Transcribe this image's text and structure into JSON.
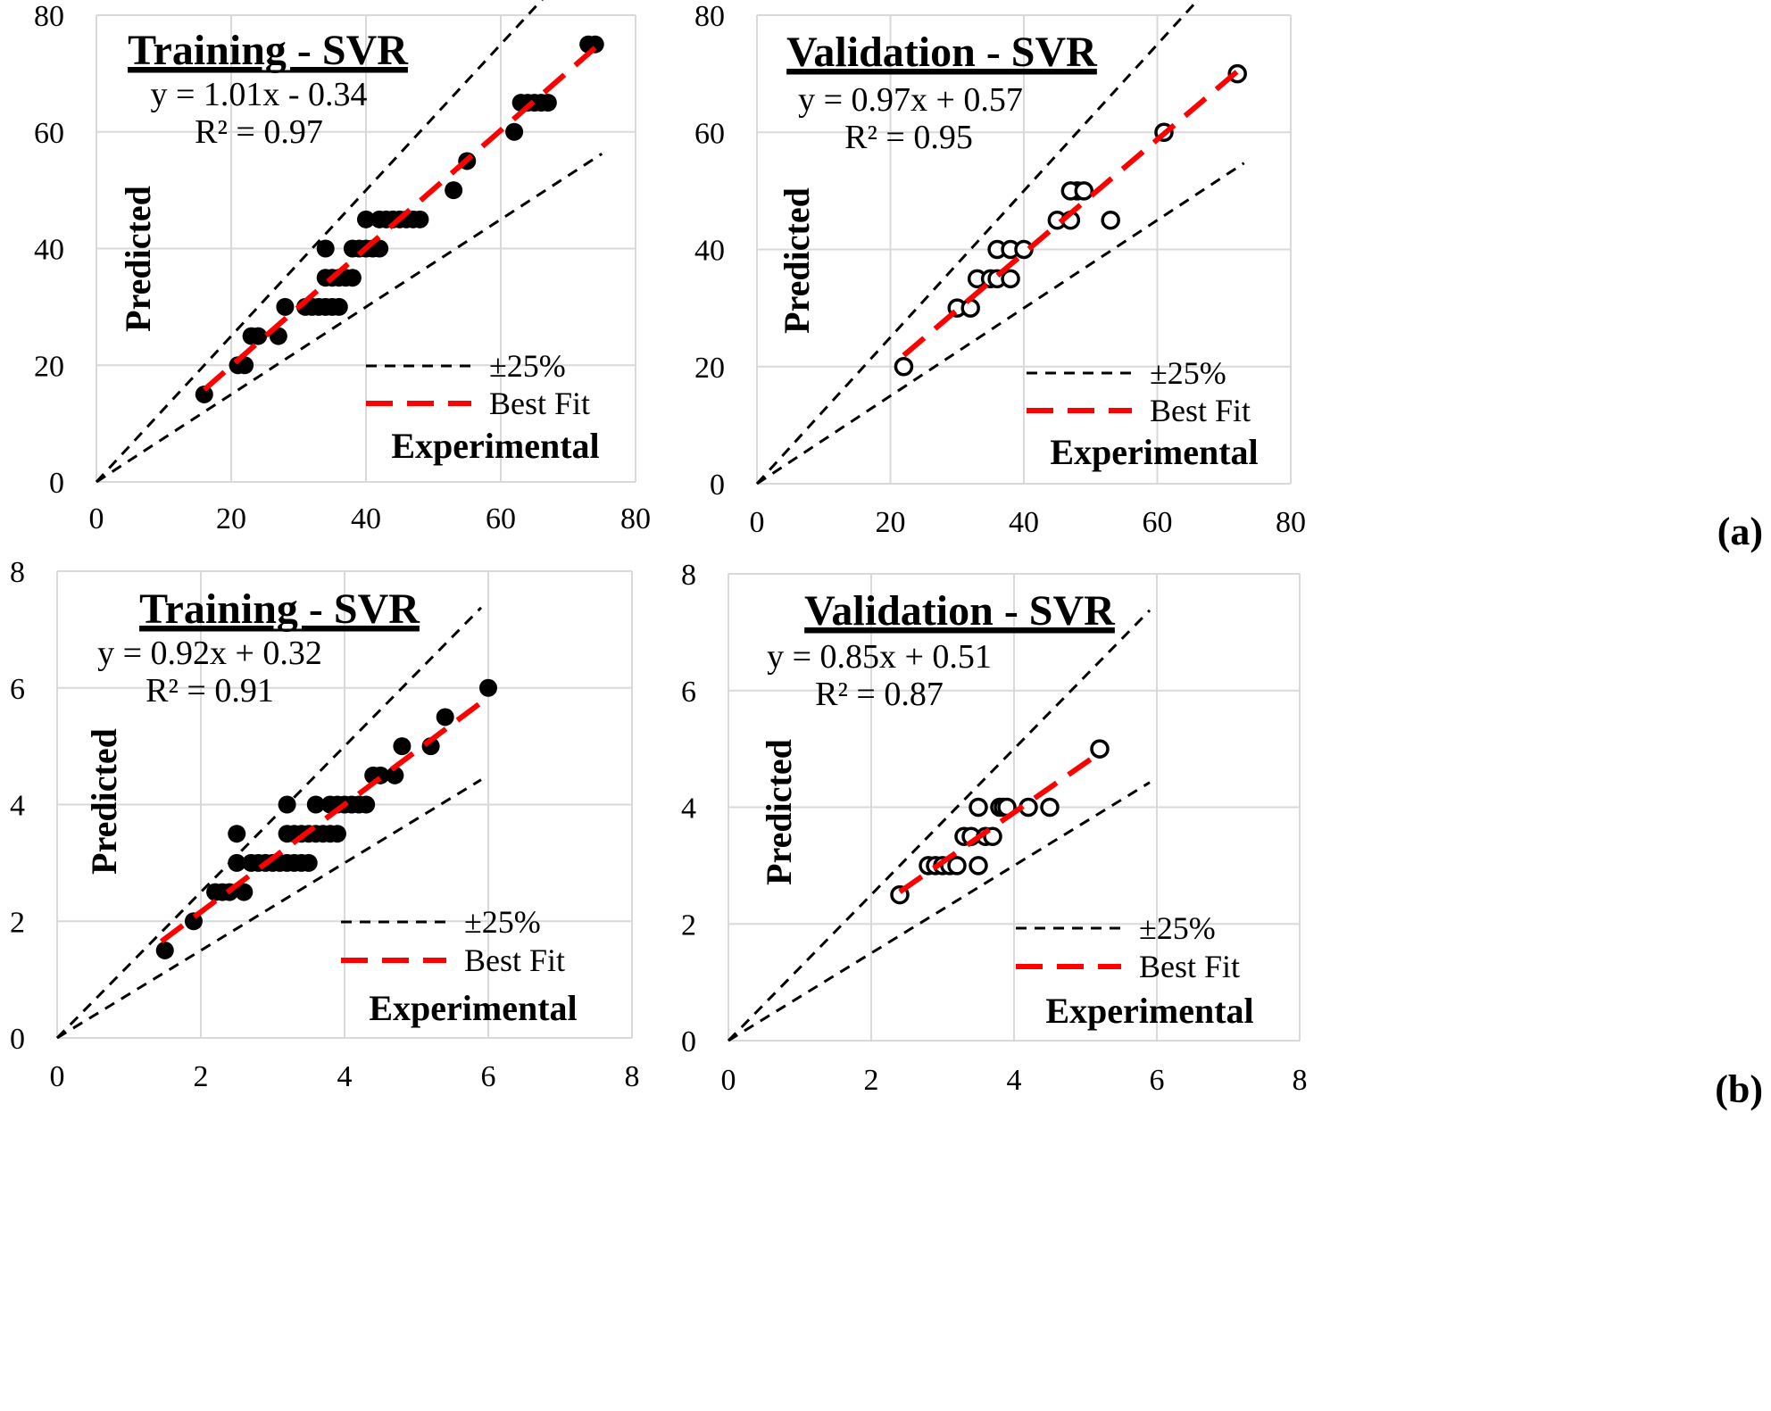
{
  "chart_data": [
    {
      "type": "scatter",
      "panel": "a",
      "title": "Training - SVR",
      "equation": "y = 1.01x - 0.34",
      "r2": "R² = 0.97",
      "xlabel": "Experimental",
      "ylabel": "Predicted",
      "xlim": [
        0,
        80
      ],
      "ylim": [
        0,
        80
      ],
      "xticks": [
        "0",
        "20",
        "40",
        "60",
        "80"
      ],
      "yticks": [
        "0",
        "20",
        "40",
        "60",
        "80"
      ],
      "grid": true,
      "marker": "filled",
      "legend": [
        "±25%",
        "Best Fit"
      ],
      "fit": {
        "slope": 1.01,
        "intercept": -0.34,
        "x_range": [
          16,
          74
        ]
      },
      "bands": {
        "upper": 1.25,
        "lower": 0.75,
        "x_max": 75
      },
      "points": {
        "x": [
          16,
          21,
          22,
          23,
          24,
          27,
          28,
          31,
          32,
          33,
          34,
          35,
          36,
          34,
          35,
          36,
          37,
          38,
          34,
          38,
          39,
          40,
          41,
          42,
          40,
          42,
          43,
          44,
          45,
          46,
          47,
          48,
          53,
          55,
          62,
          63,
          64,
          65,
          66,
          67,
          73,
          74
        ],
        "y": [
          15,
          20,
          20,
          25,
          25,
          25,
          30,
          30,
          30,
          30,
          30,
          30,
          30,
          35,
          35,
          35,
          35,
          35,
          40,
          40,
          40,
          40,
          40,
          40,
          45,
          45,
          45,
          45,
          45,
          45,
          45,
          45,
          50,
          55,
          60,
          65,
          65,
          65,
          65,
          65,
          75,
          75
        ]
      }
    },
    {
      "type": "scatter",
      "panel": "a",
      "title": "Validation - SVR",
      "equation": "y = 0.97x + 0.57",
      "r2": "R² = 0.95",
      "xlabel": "Experimental",
      "ylabel": "Predicted",
      "xlim": [
        0,
        80
      ],
      "ylim": [
        0,
        80
      ],
      "xticks": [
        "0",
        "20",
        "40",
        "60",
        "80"
      ],
      "yticks": [
        "0",
        "20",
        "40",
        "60",
        "80"
      ],
      "grid": true,
      "marker": "open",
      "legend": [
        "±25%",
        "Best Fit"
      ],
      "fit": {
        "slope": 0.97,
        "intercept": 0.57,
        "x_range": [
          22,
          72
        ]
      },
      "bands": {
        "upper": 1.25,
        "lower": 0.75,
        "x_max": 73
      },
      "points": {
        "x": [
          22,
          30,
          32,
          33,
          35,
          36,
          38,
          36,
          38,
          40,
          45,
          47,
          48,
          47,
          49,
          53,
          61,
          72
        ],
        "y": [
          20,
          30,
          30,
          35,
          35,
          35,
          35,
          40,
          40,
          40,
          45,
          45,
          50,
          50,
          50,
          45,
          60,
          70
        ]
      },
      "panel_label": "(a)"
    },
    {
      "type": "scatter",
      "panel": "b",
      "title": "Training - SVR",
      "equation": "y = 0.92x + 0.32",
      "r2": "R² = 0.91",
      "xlabel": "Experimental",
      "ylabel": "Predicted",
      "xlim": [
        0,
        8
      ],
      "ylim": [
        0,
        8
      ],
      "xticks": [
        "0",
        "2",
        "4",
        "6",
        "8"
      ],
      "yticks": [
        "0",
        "2",
        "4",
        "6",
        "8"
      ],
      "grid": true,
      "marker": "filled",
      "legend": [
        "±25%",
        "Best Fit"
      ],
      "fit": {
        "slope": 0.92,
        "intercept": 0.32,
        "x_range": [
          1.45,
          6.0
        ]
      },
      "bands": {
        "upper": 1.25,
        "lower": 0.75,
        "x_max": 5.9
      },
      "points": {
        "x": [
          1.5,
          1.9,
          2.2,
          2.3,
          2.4,
          2.5,
          2.6,
          2.5,
          2.7,
          2.8,
          2.9,
          3.0,
          3.1,
          3.2,
          3.3,
          3.4,
          3.5,
          3.2,
          3.3,
          3.4,
          3.5,
          3.6,
          3.7,
          3.8,
          3.9,
          3.2,
          3.6,
          3.8,
          3.9,
          4.0,
          4.1,
          4.2,
          4.3,
          4.4,
          4.5,
          4.7,
          4.8,
          5.2,
          5.4,
          6.0
        ],
        "y": [
          1.5,
          2.0,
          2.5,
          2.5,
          2.5,
          3.5,
          2.5,
          3.0,
          3.0,
          3.0,
          3.0,
          3.0,
          3.0,
          3.0,
          3.0,
          3.0,
          3.0,
          3.5,
          3.5,
          3.5,
          3.5,
          3.5,
          3.5,
          3.5,
          3.5,
          4.0,
          4.0,
          4.0,
          4.0,
          4.0,
          4.0,
          4.0,
          4.0,
          4.5,
          4.5,
          4.5,
          5.0,
          5.0,
          5.5,
          6.0
        ]
      }
    },
    {
      "type": "scatter",
      "panel": "b",
      "title": "Validation - SVR",
      "equation": "y = 0.85x + 0.51",
      "r2": "R² = 0.87",
      "xlabel": "Experimental",
      "ylabel": "Predicted",
      "xlim": [
        0,
        8
      ],
      "ylim": [
        0,
        8
      ],
      "xticks": [
        "0",
        "2",
        "4",
        "6",
        "8"
      ],
      "yticks": [
        "0",
        "2",
        "4",
        "6",
        "8"
      ],
      "grid": true,
      "marker": "open",
      "legend": [
        "±25%",
        "Best Fit"
      ],
      "fit": {
        "slope": 0.85,
        "intercept": 0.51,
        "x_range": [
          2.4,
          5.2
        ]
      },
      "bands": {
        "upper": 1.25,
        "lower": 0.75,
        "x_max": 5.9
      },
      "points": {
        "x": [
          2.4,
          2.8,
          2.9,
          3.0,
          3.1,
          3.2,
          3.5,
          3.3,
          3.4,
          3.6,
          3.7,
          3.5,
          3.8,
          3.85,
          3.9,
          4.2,
          4.5,
          5.2
        ],
        "y": [
          2.5,
          3.0,
          3.0,
          3.0,
          3.0,
          3.0,
          3.0,
          3.5,
          3.5,
          3.5,
          3.5,
          4.0,
          4.0,
          4.0,
          4.0,
          4.0,
          4.0,
          5.0
        ]
      },
      "panel_label": "(b)"
    }
  ],
  "colors": {
    "fit": "#ff0000",
    "band": "#000000",
    "grid": "#d9d9d9",
    "marker": "#000000"
  }
}
